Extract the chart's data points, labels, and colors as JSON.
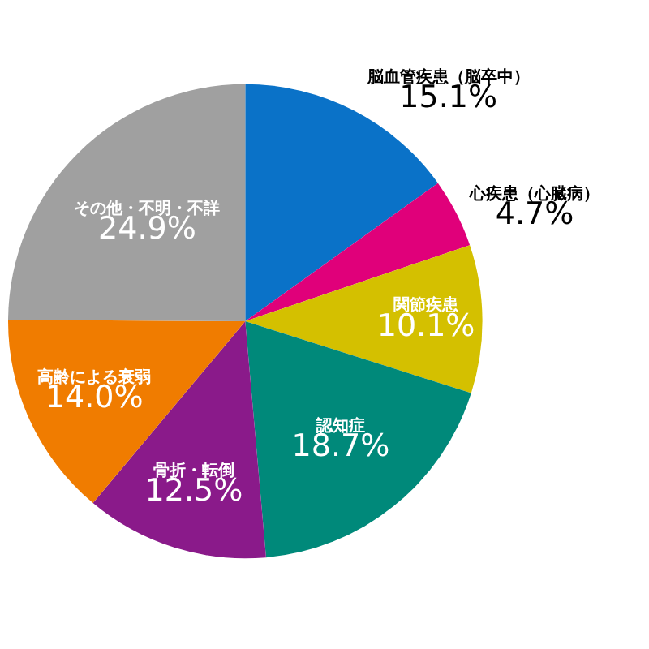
{
  "chart_data": {
    "type": "pie",
    "categories": [
      "脳血管疾患（脳卒中）",
      "心疾患（心臓病）",
      "関節疾患",
      "認知症",
      "骨折・転倒",
      "高齢による衰弱",
      "その他・不明・不詳"
    ],
    "values": [
      15.1,
      4.7,
      10.1,
      18.7,
      12.5,
      14.0,
      24.9
    ],
    "value_labels": [
      "15.1%",
      "4.7%",
      "10.1%",
      "18.7%",
      "12.5%",
      "14.0%",
      "24.9%"
    ],
    "colors": [
      "#0a72c8",
      "#e0007a",
      "#d4c000",
      "#00897a",
      "#8a1a8a",
      "#f07c00",
      "#a0a0a0"
    ],
    "legend": false
  }
}
